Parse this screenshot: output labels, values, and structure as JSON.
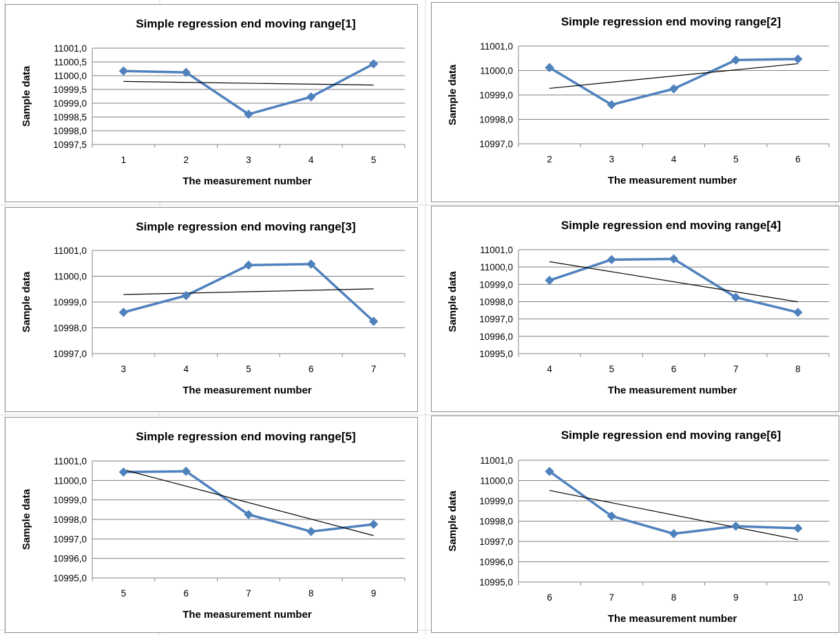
{
  "colors": {
    "series": "#4F81BD",
    "trend": "#000000",
    "gridline": "#7f7f7f",
    "axis": "#868686",
    "background_grid": "#d9d9d9"
  },
  "chart_data": [
    {
      "type": "line",
      "title": "Simple regression end moving range[1]",
      "xlabel": "The measurement number",
      "ylabel": "Sample data",
      "categories": [
        "1",
        "2",
        "3",
        "4",
        "5"
      ],
      "y_ticks": [
        "11001,0",
        "11000,5",
        "11000,0",
        "10999,5",
        "10999,0",
        "10998,5",
        "10998,0",
        "10997,5"
      ],
      "ylim": [
        10997.5,
        11001.0
      ],
      "ystep": 0.5,
      "values": [
        11000.17,
        11000.12,
        10998.6,
        10999.23,
        11000.43
      ],
      "trendline": [
        10999.79,
        10999.66
      ],
      "grid": true,
      "legend": "none",
      "marker": "diamond"
    },
    {
      "type": "line",
      "title": "Simple regression end moving range[2]",
      "xlabel": "The measurement number",
      "ylabel": "Sample data",
      "categories": [
        "2",
        "3",
        "4",
        "5",
        "6"
      ],
      "y_ticks": [
        "11001,0",
        "11000,0",
        "10999,0",
        "10998,0",
        "10997,0"
      ],
      "ylim": [
        10997.0,
        11001.0
      ],
      "ystep": 1.0,
      "values": [
        11000.12,
        10998.6,
        10999.25,
        11000.43,
        11000.47
      ],
      "trendline": [
        10999.27,
        11000.28
      ],
      "grid": true,
      "legend": "none",
      "marker": "diamond"
    },
    {
      "type": "line",
      "title": "Simple regression end moving range[3]",
      "xlabel": "The measurement number",
      "ylabel": "Sample data",
      "categories": [
        "3",
        "4",
        "5",
        "6",
        "7"
      ],
      "y_ticks": [
        "11001,0",
        "11000,0",
        "10999,0",
        "10998,0",
        "10997,0"
      ],
      "ylim": [
        10997.0,
        11001.0
      ],
      "ystep": 1.0,
      "values": [
        10998.6,
        10999.25,
        11000.43,
        11000.47,
        10998.25
      ],
      "trendline": [
        10999.29,
        10999.51
      ],
      "grid": true,
      "legend": "none",
      "marker": "diamond"
    },
    {
      "type": "line",
      "title": "Simple regression end moving range[4]",
      "xlabel": "The measurement number",
      "ylabel": "Sample data",
      "categories": [
        "4",
        "5",
        "6",
        "7",
        "8"
      ],
      "y_ticks": [
        "11001,0",
        "11000,0",
        "10999,0",
        "10998,0",
        "10997,0",
        "10996,0",
        "10995,0"
      ],
      "ylim": [
        10995.0,
        11001.0
      ],
      "ystep": 1.0,
      "values": [
        10999.23,
        11000.43,
        11000.47,
        10998.25,
        10997.38
      ],
      "trendline": [
        11000.31,
        10997.99
      ],
      "grid": true,
      "legend": "none",
      "marker": "diamond"
    },
    {
      "type": "line",
      "title": "Simple regression end moving range[5]",
      "xlabel": "The measurement number",
      "ylabel": "Sample data",
      "categories": [
        "5",
        "6",
        "7",
        "8",
        "9"
      ],
      "y_ticks": [
        "11001,0",
        "11000,0",
        "10999,0",
        "10998,0",
        "10997,0",
        "10996,0",
        "10995,0"
      ],
      "ylim": [
        10995.0,
        11001.0
      ],
      "ystep": 1.0,
      "values": [
        11000.43,
        11000.47,
        10998.25,
        10997.38,
        10997.75
      ],
      "trendline": [
        11000.55,
        10997.17
      ],
      "grid": true,
      "legend": "none",
      "marker": "diamond"
    },
    {
      "type": "line",
      "title": "Simple regression end moving range[6]",
      "xlabel": "The measurement number",
      "ylabel": "Sample data",
      "categories": [
        "6",
        "7",
        "8",
        "9",
        "10"
      ],
      "y_ticks": [
        "11001,0",
        "11000,0",
        "10999,0",
        "10998,0",
        "10997,0",
        "10996,0",
        "10995,0"
      ],
      "ylim": [
        10995.0,
        11001.0
      ],
      "ystep": 1.0,
      "values": [
        11000.45,
        10998.25,
        10997.38,
        10997.75,
        10997.65
      ],
      "trendline": [
        10999.51,
        10997.09
      ],
      "grid": true,
      "legend": "none",
      "marker": "diamond"
    }
  ]
}
